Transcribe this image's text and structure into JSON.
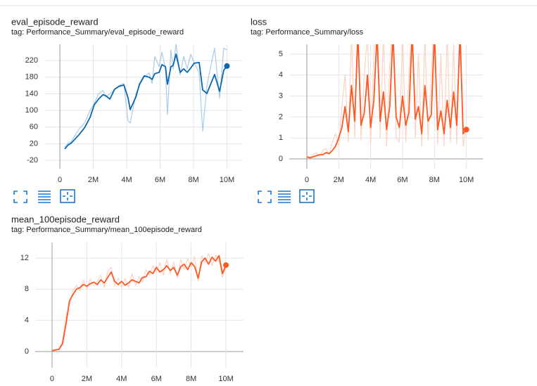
{
  "chart_data": [
    {
      "type": "line",
      "title": "eval_episode_reward",
      "subtitle": "tag: Performance_Summary/eval_episode_reward",
      "x": [
        290000,
        510000,
        670000,
        1140000,
        1470000,
        1810000,
        2060000,
        2320000,
        2570000,
        2740000,
        2990000,
        3280000,
        3540000,
        3830000,
        4080000,
        4210000,
        4550000,
        4760000,
        5050000,
        5350000,
        5520000,
        5680000,
        5940000,
        6110000,
        6320000,
        6440000,
        6650000,
        6780000,
        6950000,
        7200000,
        7410000,
        7620000,
        7830000,
        8040000,
        8340000,
        8550000,
        8800000,
        9260000,
        9560000,
        9810000,
        10000000
      ],
      "series": [
        {
          "color": "#a9cbe8",
          "values": [
            12,
            22,
            25,
            55,
            70,
            100,
            118,
            140,
            148,
            132,
            140,
            150,
            160,
            165,
            75,
            70,
            140,
            160,
            180,
            190,
            165,
            230,
            205,
            240,
            200,
            90,
            245,
            200,
            260,
            185,
            230,
            200,
            235,
            215,
            190,
            50,
            160,
            250,
            130,
            250,
            245
          ]
        },
        {
          "color": "#0b66b0",
          "values": [
            7.6,
            17.7,
            21.1,
            41.4,
            58.2,
            83.5,
            113.9,
            127.4,
            137.6,
            135.9,
            127.4,
            151.1,
            157.8,
            161.2,
            130.8,
            102.1,
            132.5,
            162.9,
            183.1,
            179.7,
            174.7,
            188.2,
            191.6,
            210.1,
            205.1,
            162.9,
            205.1,
            208.4,
            235.4,
            191.6,
            200,
            191.6,
            201.7,
            213.5,
            215.2,
            149.4,
            140.9,
            186.5,
            146,
            196.6,
            206.8
          ]
        }
      ],
      "xlim": [
        -930000,
        10950000
      ],
      "ylim": [
        -40,
        259
      ],
      "xticks": [
        0,
        {
          "value": 2000000,
          "label": "2M"
        },
        {
          "value": 4000000,
          "label": "4M"
        },
        {
          "value": 6000000,
          "label": "6M"
        },
        {
          "value": 8000000,
          "label": "8M"
        },
        {
          "value": 10000000,
          "label": "10M"
        }
      ],
      "yticks": [
        -20,
        20,
        60,
        100,
        140,
        180,
        220
      ],
      "grid": true
    },
    {
      "type": "line",
      "title": "loss",
      "subtitle": "tag: Performance_Summary/loss",
      "x": [
        0,
        200000,
        400000,
        600000,
        800000,
        1000000,
        1200000,
        1400000,
        1600000,
        1800000,
        2000000,
        2200000,
        2400000,
        2600000,
        2800000,
        3000000,
        3200000,
        3400000,
        3600000,
        3800000,
        4000000,
        4200000,
        4400000,
        4600000,
        4800000,
        5000000,
        5200000,
        5400000,
        5600000,
        5800000,
        6000000,
        6200000,
        6400000,
        6600000,
        6800000,
        7000000,
        7200000,
        7400000,
        7600000,
        7800000,
        8000000,
        8200000,
        8400000,
        8600000,
        8800000,
        9000000,
        9200000,
        9400000,
        9600000,
        9800000,
        10000000
      ],
      "series": [
        {
          "color": "#fcd3c4",
          "values": [
            0.15,
            0.05,
            0.2,
            0.3,
            0.1,
            0.4,
            0.5,
            0.2,
            0.8,
            1.2,
            0.6,
            2.5,
            4,
            0.8,
            6,
            1,
            7,
            0.9,
            4,
            6,
            0.7,
            5,
            7,
            1,
            6,
            0.6,
            4.5,
            7,
            1,
            0.8,
            6,
            0.8,
            4,
            7,
            1,
            5,
            0.6,
            6,
            0.9,
            4,
            7,
            0.7,
            5,
            0.6,
            6,
            0.8,
            5.5,
            0.7,
            7,
            0.6,
            1.5
          ]
        },
        {
          "color": "#ff5722",
          "values": [
            0.1,
            0.05,
            0.1,
            0.15,
            0.2,
            0.2,
            0.3,
            0.25,
            0.4,
            0.6,
            1,
            1.5,
            2.5,
            1.3,
            3.5,
            1.8,
            6,
            1.6,
            2.2,
            4,
            1.5,
            2.8,
            6,
            1.8,
            3.2,
            1.4,
            2.5,
            6,
            2,
            1.5,
            3,
            1.6,
            2.2,
            6,
            1.9,
            2.5,
            1.2,
            3.5,
            1.8,
            2.1,
            6,
            1.4,
            2.3,
            1.2,
            2.8,
            1.5,
            3.2,
            1.6,
            6,
            1.2,
            1.4
          ]
        }
      ],
      "xlim": [
        -1100000,
        11030000
      ],
      "ylim": [
        -0.47,
        5.47
      ],
      "xticks": [
        0,
        {
          "value": 2000000,
          "label": "2M"
        },
        {
          "value": 4000000,
          "label": "4M"
        },
        {
          "value": 6000000,
          "label": "6M"
        },
        {
          "value": 8000000,
          "label": "8M"
        },
        {
          "value": 10000000,
          "label": "10M"
        }
      ],
      "yticks": [
        0,
        1,
        2,
        3,
        4,
        5
      ],
      "grid": true
    },
    {
      "type": "line",
      "title": "mean_100episode_reward",
      "subtitle": "tag: Performance_Summary/mean_100episode_reward",
      "x": [
        0,
        200000,
        400000,
        600000,
        800000,
        1000000,
        1200000,
        1400000,
        1600000,
        1800000,
        2000000,
        2200000,
        2400000,
        2600000,
        2800000,
        3000000,
        3200000,
        3400000,
        3600000,
        3800000,
        4000000,
        4200000,
        4400000,
        4600000,
        4800000,
        5000000,
        5200000,
        5400000,
        5600000,
        5800000,
        6000000,
        6200000,
        6400000,
        6600000,
        6800000,
        7000000,
        7200000,
        7400000,
        7600000,
        7800000,
        8000000,
        8200000,
        8400000,
        8600000,
        8800000,
        9000000,
        9200000,
        9400000,
        9600000,
        9800000,
        10000000
      ],
      "series": [
        {
          "color": "#fcd3c4",
          "values": [
            0.1,
            0.3,
            0.2,
            1.5,
            4.5,
            6,
            7.8,
            8.5,
            7.8,
            9.2,
            8,
            9.3,
            8.4,
            9,
            9.8,
            8.2,
            10.3,
            10.8,
            8.4,
            9.4,
            8.2,
            9.4,
            8.2,
            10,
            8.5,
            9.6,
            8.9,
            10.5,
            9.8,
            11,
            10.2,
            11.4,
            9.8,
            11.8,
            10,
            11.5,
            9.4,
            11.8,
            10.6,
            11.9,
            10.8,
            12.2,
            9,
            12.3,
            11.4,
            12.6,
            11,
            12.4,
            11.6,
            9.5,
            10.8
          ]
        },
        {
          "color": "#ff5722",
          "values": [
            0.1,
            0.2,
            0.3,
            1,
            3.5,
            6.5,
            7.3,
            8,
            8.2,
            8.6,
            8.4,
            8.7,
            8.9,
            8.6,
            9.2,
            8.8,
            9.5,
            10.2,
            9,
            8.6,
            9,
            8.5,
            8.8,
            9.2,
            9,
            8.8,
            9.5,
            9.6,
            10.3,
            10,
            10.8,
            10.2,
            10.5,
            11,
            10.4,
            10.8,
            9.8,
            10.9,
            11.2,
            10.5,
            11.4,
            10.9,
            9.4,
            11.5,
            12,
            11.2,
            12.1,
            11.6,
            12.3,
            10,
            11.1
          ]
        }
      ],
      "xlim": [
        -970000,
        11010000
      ],
      "ylim": [
        -2.07,
        13.98
      ],
      "xticks": [
        0,
        {
          "value": 2000000,
          "label": "2M"
        },
        {
          "value": 4000000,
          "label": "4M"
        },
        {
          "value": 6000000,
          "label": "6M"
        },
        {
          "value": 8000000,
          "label": "8M"
        },
        {
          "value": 10000000,
          "label": "10M"
        }
      ],
      "yticks": [
        0,
        4,
        8,
        12
      ],
      "grid": true
    }
  ]
}
